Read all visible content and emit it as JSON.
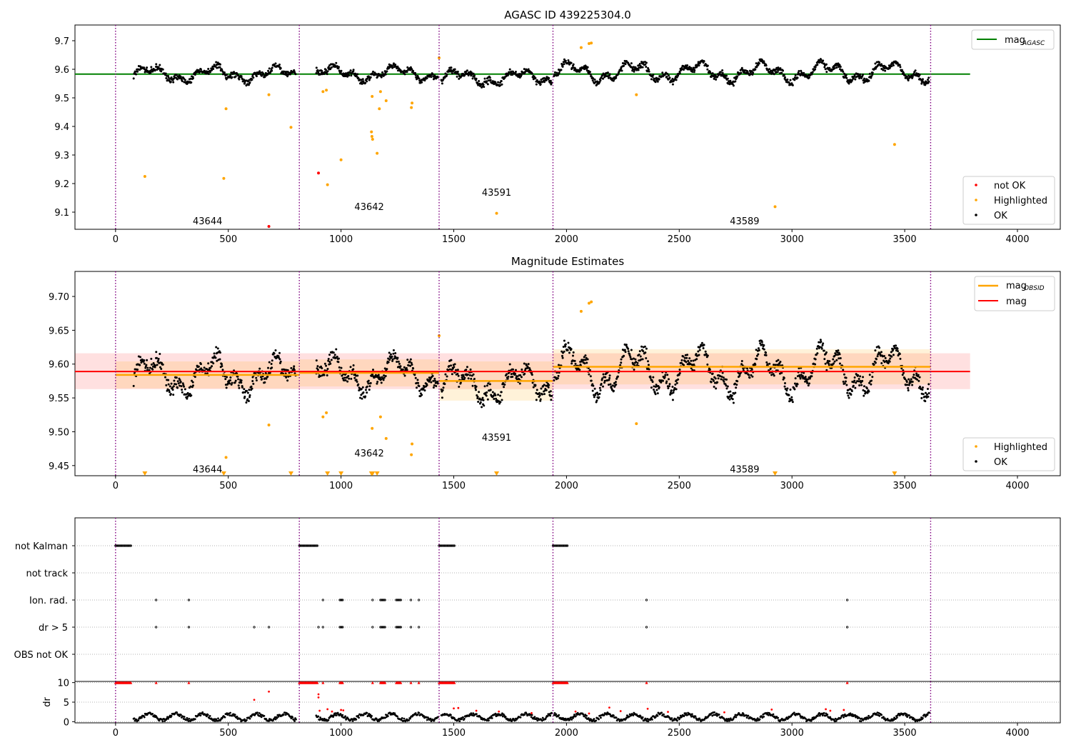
{
  "figure": {
    "background": "#ffffff",
    "colors": {
      "ok": "#000000",
      "highlighted": "#ffa500",
      "not_ok": "#ff0000",
      "agasc_line": "#008000",
      "obsid_line": "#ffa500",
      "mag_line": "#ff0000",
      "obs_boundary": "#800080",
      "grid": "#b0b0b0"
    }
  },
  "chart_data": [
    {
      "id": "agasc-panel",
      "type": "scatter",
      "title": "AGASC ID 439225304.0",
      "xlabel": "",
      "ylabel": "",
      "xlim": [
        -180,
        4190
      ],
      "ylim": [
        9.04,
        9.755
      ],
      "xticks": [
        0,
        500,
        1000,
        1500,
        2000,
        2500,
        3000,
        3500,
        4000
      ],
      "yticks": [
        9.1,
        9.2,
        9.3,
        9.4,
        9.5,
        9.6,
        9.7
      ],
      "ytick_labels": [
        "9.1",
        "9.2",
        "9.3",
        "9.4",
        "9.5",
        "9.6",
        "9.7"
      ],
      "obs_boundaries": [
        0,
        815,
        1435,
        1940,
        3615
      ],
      "obsid_labels": [
        {
          "text": "43644",
          "x": 408,
          "y": 9.07
        },
        {
          "text": "43642",
          "x": 1125,
          "y": 9.12
        },
        {
          "text": "43591",
          "x": 1690,
          "y": 9.17
        },
        {
          "text": "43589",
          "x": 2790,
          "y": 9.07
        }
      ],
      "reference_lines": [
        {
          "name": "mag_{AGASC}",
          "y": 9.583,
          "x": [
            -180,
            3790
          ]
        }
      ],
      "segments": [
        {
          "x": [
            80,
            800
          ],
          "y": 9.583,
          "amp": 0.02,
          "noise": 0.012
        },
        {
          "x": [
            890,
            1430
          ],
          "y": 9.585,
          "amp": 0.02,
          "noise": 0.012
        },
        {
          "x": [
            1445,
            1935
          ],
          "y": 9.57,
          "amp": 0.02,
          "noise": 0.012
        },
        {
          "x": [
            1945,
            3610
          ],
          "y": 9.59,
          "amp": 0.025,
          "noise": 0.012
        }
      ],
      "highlighted": [
        [
          130,
          9.225
        ],
        [
          480,
          9.218
        ],
        [
          490,
          9.462
        ],
        [
          680,
          9.511
        ],
        [
          778,
          9.397
        ],
        [
          920,
          9.522
        ],
        [
          935,
          9.527
        ],
        [
          940,
          9.196
        ],
        [
          1000,
          9.283
        ],
        [
          1135,
          9.381
        ],
        [
          1137,
          9.365
        ],
        [
          1140,
          9.355
        ],
        [
          1138,
          9.505
        ],
        [
          1160,
          9.306
        ],
        [
          1170,
          9.462
        ],
        [
          1175,
          9.522
        ],
        [
          1200,
          9.49
        ],
        [
          1312,
          9.466
        ],
        [
          1315,
          9.482
        ],
        [
          1435,
          9.64
        ],
        [
          1690,
          9.096
        ],
        [
          2065,
          9.676
        ],
        [
          2100,
          9.69
        ],
        [
          2110,
          9.692
        ],
        [
          2310,
          9.511
        ],
        [
          2925,
          9.119
        ],
        [
          3455,
          9.337
        ]
      ],
      "not_ok": [
        [
          680,
          9.05
        ],
        [
          900,
          9.237
        ]
      ],
      "legend_lines": [
        {
          "label": "mag",
          "sub": "AGASC"
        }
      ],
      "legend_markers": [
        "not OK",
        "Highlighted",
        "OK"
      ]
    },
    {
      "id": "estimates-panel",
      "type": "scatter",
      "title": "Magnitude Estimates",
      "xlabel": "",
      "ylabel": "",
      "xlim": [
        -180,
        4190
      ],
      "ylim": [
        9.435,
        9.737
      ],
      "xticks": [
        0,
        500,
        1000,
        1500,
        2000,
        2500,
        3000,
        3500,
        4000
      ],
      "yticks": [
        9.45,
        9.5,
        9.55,
        9.6,
        9.65,
        9.7
      ],
      "ytick_labels": [
        "9.45",
        "9.50",
        "9.55",
        "9.60",
        "9.65",
        "9.70"
      ],
      "obs_boundaries": [
        0,
        815,
        1435,
        1940,
        3615
      ],
      "obsid_labels": [
        {
          "text": "43644",
          "x": 408,
          "y": 9.445
        },
        {
          "text": "43642",
          "x": 1125,
          "y": 9.469
        },
        {
          "text": "43591",
          "x": 1690,
          "y": 9.492
        },
        {
          "text": "43589",
          "x": 2790,
          "y": 9.445
        }
      ],
      "mag_line": {
        "y": 9.589,
        "x": [
          -180,
          3790
        ],
        "band": [
          9.563,
          9.616
        ]
      },
      "obsid_mags": [
        {
          "x": [
            0,
            815
          ],
          "y": 9.584,
          "band": [
            9.564,
            9.604
          ]
        },
        {
          "x": [
            815,
            1435
          ],
          "y": 9.587,
          "band": [
            9.567,
            9.607
          ]
        },
        {
          "x": [
            1435,
            1940
          ],
          "y": 9.575,
          "band": [
            9.546,
            9.604
          ]
        },
        {
          "x": [
            1940,
            3615
          ],
          "y": 9.596,
          "band": [
            9.57,
            9.622
          ]
        }
      ],
      "highlighted": [
        [
          490,
          9.462
        ],
        [
          680,
          9.51
        ],
        [
          920,
          9.522
        ],
        [
          935,
          9.528
        ],
        [
          1138,
          9.505
        ],
        [
          1175,
          9.522
        ],
        [
          1200,
          9.49
        ],
        [
          1312,
          9.466
        ],
        [
          1315,
          9.482
        ],
        [
          1435,
          9.642
        ],
        [
          2065,
          9.678
        ],
        [
          2100,
          9.69
        ],
        [
          2110,
          9.692
        ],
        [
          2310,
          9.512
        ]
      ],
      "below_range": [
        130,
        480,
        778,
        940,
        1000,
        1135,
        1140,
        1160,
        1690,
        2925,
        3455
      ],
      "segments": [
        {
          "x": [
            80,
            800
          ],
          "y": 9.583,
          "amp": 0.02,
          "noise": 0.012
        },
        {
          "x": [
            890,
            1430
          ],
          "y": 9.585,
          "amp": 0.02,
          "noise": 0.012
        },
        {
          "x": [
            1445,
            1935
          ],
          "y": 9.57,
          "amp": 0.02,
          "noise": 0.012
        },
        {
          "x": [
            1945,
            3610
          ],
          "y": 9.59,
          "amp": 0.025,
          "noise": 0.012
        }
      ],
      "legend_lines": [
        {
          "label": "mag",
          "sub": "OBSID"
        },
        {
          "label": "mag",
          "sub": ""
        }
      ],
      "legend_markers": [
        "Highlighted",
        "OK"
      ]
    },
    {
      "id": "flags-panel",
      "type": "scatter",
      "title": "",
      "xlim": [
        -180,
        4190
      ],
      "categories": [
        "not Kalman",
        "not track",
        "Ion. rad.",
        "dr > 5",
        "OBS not OK"
      ],
      "flag_runs": {
        "not Kalman": [
          [
            0,
            70
          ],
          [
            815,
            895
          ],
          [
            1435,
            1505
          ],
          [
            1940,
            2005
          ]
        ],
        "Ion. rad.": [
          [
            180,
            180
          ],
          [
            325,
            325
          ],
          [
            920,
            920
          ],
          [
            995,
            1010
          ],
          [
            1140,
            1140
          ],
          [
            1175,
            1195
          ],
          [
            1245,
            1265
          ],
          [
            1310,
            1310
          ],
          [
            1345,
            1345
          ],
          [
            2355,
            2355
          ],
          [
            3245,
            3245
          ]
        ],
        "dr > 5": [
          [
            180,
            180
          ],
          [
            325,
            325
          ],
          [
            615,
            615
          ],
          [
            680,
            680
          ],
          [
            900,
            900
          ],
          [
            920,
            920
          ],
          [
            995,
            1010
          ],
          [
            1140,
            1140
          ],
          [
            1175,
            1195
          ],
          [
            1245,
            1265
          ],
          [
            1310,
            1310
          ],
          [
            1345,
            1345
          ],
          [
            2355,
            2355
          ],
          [
            3245,
            3245
          ]
        ]
      },
      "obs_boundaries": [
        0,
        815,
        1435,
        1940,
        3615
      ]
    },
    {
      "id": "dr-panel",
      "type": "scatter",
      "title": "",
      "xlabel": "",
      "ylabel": "dr",
      "xlim": [
        -180,
        4190
      ],
      "ylim": [
        -0.3,
        10.3
      ],
      "xticks": [
        0,
        500,
        1000,
        1500,
        2000,
        2500,
        3000,
        3500,
        4000
      ],
      "yticks": [
        0,
        5,
        10
      ],
      "obs_boundaries": [
        0,
        815,
        1435,
        1940,
        3615
      ],
      "capped_at_10": [
        [
          0,
          70
        ],
        [
          180,
          180
        ],
        [
          325,
          325
        ],
        [
          815,
          895
        ],
        [
          920,
          920
        ],
        [
          995,
          1010
        ],
        [
          1140,
          1140
        ],
        [
          1175,
          1195
        ],
        [
          1245,
          1265
        ],
        [
          1310,
          1310
        ],
        [
          1345,
          1345
        ],
        [
          1435,
          1505
        ],
        [
          1940,
          2005
        ],
        [
          2355,
          2355
        ],
        [
          3245,
          3245
        ]
      ],
      "red_points": [
        [
          615,
          5.6
        ],
        [
          680,
          7.7
        ],
        [
          900,
          7.0
        ],
        [
          900,
          6.2
        ],
        [
          905,
          2.8
        ],
        [
          940,
          3.2
        ],
        [
          960,
          2.6
        ],
        [
          1000,
          3.0
        ],
        [
          1010,
          2.9
        ],
        [
          1500,
          3.4
        ],
        [
          1520,
          3.5
        ],
        [
          1600,
          2.8
        ],
        [
          1700,
          2.6
        ],
        [
          1845,
          2.2
        ],
        [
          2040,
          2.6
        ],
        [
          2100,
          2.1
        ],
        [
          2190,
          3.6
        ],
        [
          2240,
          2.7
        ],
        [
          2360,
          3.3
        ],
        [
          2450,
          2.5
        ],
        [
          2700,
          2.4
        ],
        [
          2910,
          3.1
        ],
        [
          3150,
          3.2
        ],
        [
          3170,
          2.8
        ],
        [
          3230,
          3.0
        ]
      ]
    }
  ]
}
